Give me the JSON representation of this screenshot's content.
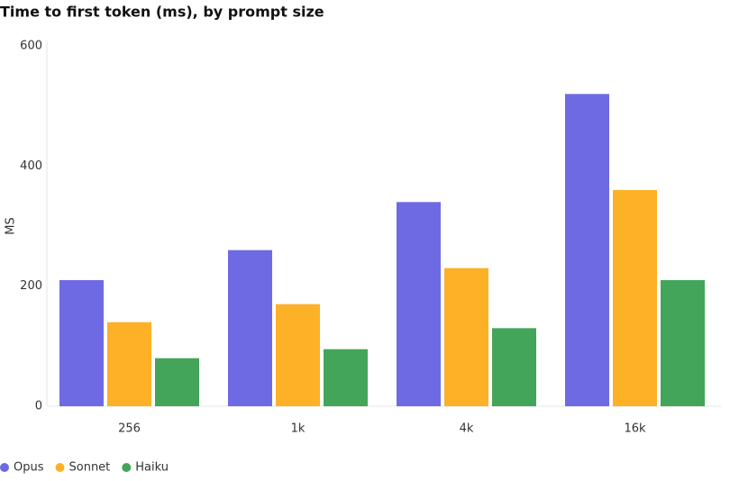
{
  "chart_data": {
    "type": "bar",
    "title": "Time to first token (ms), by prompt size",
    "y_label": "MS",
    "categories": [
      "256",
      "1k",
      "4k",
      "16k"
    ],
    "series": [
      {
        "name": "Opus",
        "color": "#6e6ae3",
        "values": [
          210,
          260,
          340,
          520
        ]
      },
      {
        "name": "Sonnet",
        "color": "#fdb127",
        "values": [
          140,
          170,
          230,
          360
        ]
      },
      {
        "name": "Haiku",
        "color": "#43a55a",
        "values": [
          80,
          95,
          130,
          210
        ]
      }
    ],
    "ylim": [
      0,
      600
    ],
    "yticks": [
      0,
      200,
      400,
      600
    ],
    "grid": false,
    "legend": "bottom-left"
  }
}
